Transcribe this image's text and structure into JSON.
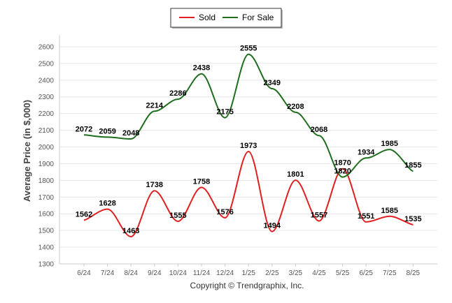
{
  "chart_data": {
    "type": "line",
    "title": "",
    "xlabel": "",
    "ylabel": "Average Price (in $,000)",
    "categories": [
      "6/24",
      "7/24",
      "8/24",
      "9/24",
      "10/24",
      "11/24",
      "12/24",
      "1/25",
      "2/25",
      "3/25",
      "4/25",
      "5/25",
      "6/25",
      "7/25",
      "8/25"
    ],
    "yticks": [
      1300,
      1400,
      1500,
      1600,
      1700,
      1800,
      1900,
      2000,
      2100,
      2200,
      2300,
      2400,
      2500,
      2600
    ],
    "ylim": [
      1300,
      2650
    ],
    "grid": true,
    "legend_position": "top-center",
    "series": [
      {
        "name": "Sold",
        "color": "#e02020",
        "values": [
          1562,
          1628,
          1463,
          1738,
          1555,
          1758,
          1576,
          1973,
          1494,
          1801,
          1557,
          1870,
          1551,
          1585,
          1535
        ]
      },
      {
        "name": "For Sale",
        "color": "#1e6e1e",
        "values": [
          2072,
          2059,
          2048,
          2214,
          2286,
          2438,
          2175,
          2555,
          2349,
          2208,
          2068,
          1820,
          1934,
          1985,
          1855
        ]
      }
    ]
  },
  "footer": {
    "copyright": "Copyright © Trendgraphix, Inc."
  }
}
